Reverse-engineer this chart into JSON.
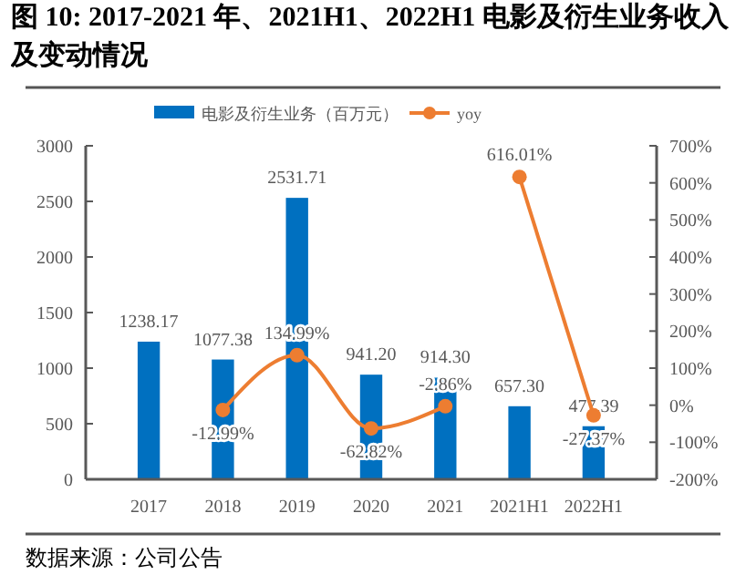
{
  "chart_data": {
    "type": "bar",
    "title": "图 10: 2017-2021 年、2021H1、2022H1 电影及衍生业务收入及变动情况",
    "annotations": [
      "数据来源：公司公告"
    ],
    "categories": [
      "2017",
      "2018",
      "2019",
      "2020",
      "2021",
      "2021H1",
      "2022H1"
    ],
    "series": [
      {
        "name": "电影及衍生业务（百万元）",
        "color": "#0070c0",
        "values": [
          1238.17,
          1077.38,
          2531.71,
          941.2,
          914.3,
          657.3,
          477.39
        ],
        "value_labels": [
          "1238.17",
          "1077.38",
          "2531.71",
          "941.20",
          "914.30",
          "657.30",
          "477.39"
        ]
      },
      {
        "name": "yoy",
        "type": "line",
        "axis": "y2",
        "color": "#ed7d31",
        "values": [
          null,
          -12.99,
          134.99,
          -62.82,
          -2.86,
          null,
          null
        ],
        "value_labels": [
          null,
          "-12.99%",
          "134.99%",
          "-62.82%",
          "-2.86%",
          null,
          null
        ]
      },
      {
        "type": "line",
        "axis": "y2",
        "color": "#ed7d31",
        "values": [
          null,
          null,
          null,
          null,
          null,
          616.01,
          -27.37
        ],
        "value_labels": [
          null,
          null,
          null,
          null,
          null,
          "616.01%",
          "-27.37%"
        ]
      }
    ],
    "ylim": [
      0,
      3000
    ],
    "yticks": [
      0,
      500,
      1000,
      1500,
      2000,
      2500,
      3000
    ],
    "y2lim": [
      -200,
      700
    ],
    "y2ticks": [
      {
        "value": -200,
        "label": "-200%"
      },
      {
        "value": -100,
        "label": "-100%"
      },
      {
        "value": 0,
        "label": "0%"
      },
      {
        "value": 100,
        "label": "100%"
      },
      {
        "value": 200,
        "label": "200%"
      },
      {
        "value": 300,
        "label": "300%"
      },
      {
        "value": 400,
        "label": "400%"
      },
      {
        "value": 500,
        "label": "500%"
      },
      {
        "value": 600,
        "label": "600%"
      },
      {
        "value": 700,
        "label": "700%"
      }
    ],
    "marker": "circle",
    "legend": "top",
    "grid": false
  }
}
